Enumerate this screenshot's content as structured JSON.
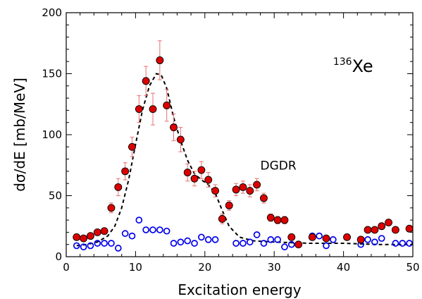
{
  "chart_data": {
    "type": "scatter",
    "title": "",
    "xlabel": "Excitation energy",
    "ylabel": "dσ/dE  [mb/MeV]",
    "xlim": [
      0,
      50
    ],
    "ylim": [
      0,
      200
    ],
    "xticks": [
      "0",
      "10",
      "20",
      "30",
      "40",
      "50"
    ],
    "yticks": [
      "0",
      "50",
      "100",
      "150",
      "200"
    ],
    "grid": false,
    "legend": "none",
    "annotations": [
      {
        "text": "Xe",
        "superscript": "136",
        "x": 38.5,
        "y": 163
      },
      {
        "text": "DGDR",
        "x": 28,
        "y": 75
      }
    ],
    "colors": {
      "red_fill": "#dd0000",
      "blue_edge": "#0000ee",
      "error_bar": "#e87070",
      "fit_line": "#000000"
    },
    "series": [
      {
        "marker": "filled-circle",
        "x": [
          1.5,
          2.5,
          3.5,
          4.5,
          5.5,
          6.5,
          7.5,
          8.5,
          9.5,
          10.5,
          11.5,
          12.5,
          13.5,
          14.5,
          15.5,
          16.5,
          17.5,
          18.5,
          19.5,
          20.5,
          21.5,
          22.5,
          23.5,
          24.5,
          25.5,
          26.5,
          27.5,
          28.5,
          29.5,
          30.5,
          31.5,
          32.5,
          33.5,
          35.5,
          37.5,
          40.5,
          42.5,
          43.5,
          44.5,
          45.5,
          46.5,
          47.5,
          49.5
        ],
        "y": [
          16,
          15,
          17,
          20,
          21,
          40,
          57,
          70,
          90,
          121,
          144,
          121,
          161,
          124,
          106,
          96,
          69,
          64,
          71,
          63,
          54,
          31,
          42,
          55,
          57,
          54,
          59,
          48,
          32,
          30,
          30,
          16,
          10,
          16,
          15,
          16,
          14,
          22,
          22,
          25,
          28,
          22,
          23
        ],
        "err": [
          2,
          2,
          2,
          2,
          2,
          4,
          7,
          7,
          8,
          11,
          12,
          13,
          16,
          13,
          11,
          10,
          7,
          6,
          7,
          6,
          5,
          4,
          4,
          5,
          5,
          5,
          5,
          4,
          3,
          3,
          3,
          2,
          2,
          2,
          2,
          2,
          2,
          2,
          2,
          2,
          2,
          2,
          2
        ]
      },
      {
        "marker": "open-circle",
        "x": [
          1.5,
          2.5,
          3.5,
          4.5,
          5.5,
          6.5,
          7.5,
          8.5,
          9.5,
          10.5,
          11.5,
          12.5,
          13.5,
          14.5,
          15.5,
          16.5,
          17.5,
          18.5,
          19.5,
          20.5,
          21.5,
          24.5,
          25.5,
          26.5,
          27.5,
          28.5,
          29.5,
          30.5,
          31.5,
          32.5,
          35.5,
          36.5,
          37.5,
          38.5,
          40.5,
          42.5,
          43.5,
          44.5,
          45.5,
          47.5,
          48.5,
          49.5
        ],
        "y": [
          9,
          8,
          9,
          11,
          11,
          11,
          7,
          19,
          17,
          30,
          22,
          22,
          22,
          21,
          11,
          12,
          13,
          11,
          16,
          14,
          14,
          11,
          11,
          12,
          18,
          11,
          14,
          14,
          8,
          10,
          17,
          17,
          9,
          14,
          16,
          10,
          14,
          12,
          15,
          11,
          11,
          11
        ]
      }
    ],
    "fit_curve": {
      "style": "dashed",
      "x": [
        1.5,
        3,
        4.5,
        6,
        7,
        8,
        9,
        10,
        11,
        12,
        13,
        13.7,
        14.5,
        15.5,
        16.5,
        17.5,
        18.5,
        19.5,
        20.5,
        21.5,
        22.5,
        23.5,
        25,
        27,
        30,
        35,
        40,
        45,
        50
      ],
      "y": [
        9,
        10,
        12,
        17,
        25,
        40,
        63,
        92,
        120,
        140,
        150,
        149,
        138,
        114,
        95,
        79,
        68,
        63,
        59,
        52,
        38,
        25,
        16,
        13,
        12,
        11,
        11,
        10,
        10
      ]
    }
  }
}
